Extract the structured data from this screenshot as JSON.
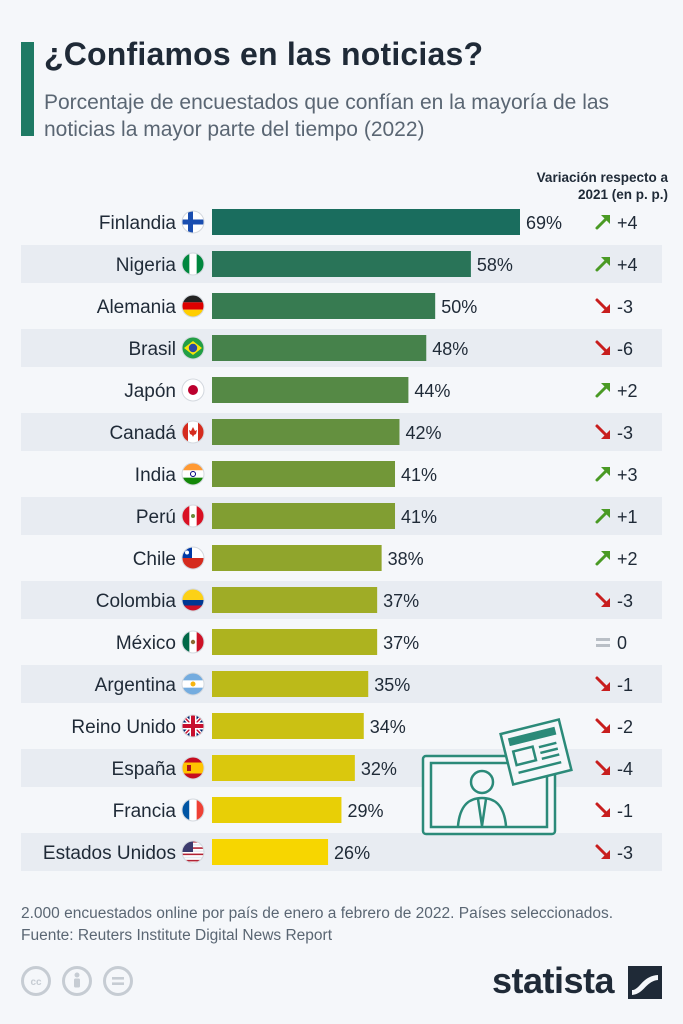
{
  "title": "¿Confiamos en las noticias?",
  "subtitle": "Porcentaje de encuestados que confían en la mayoría de las noticias la mayor parte del tiempo (2022)",
  "variation_header": "Variación respecto a 2021 (en p. p.)",
  "note": "2.000 encuestados online por país de enero a febrero de 2022. Países seleccionados.\nFuente: Reuters Institute Digital News Report",
  "brand": "statista",
  "colors": {
    "up": "#4a9a24",
    "down": "#c81e1e",
    "flat": "#b9bfc6",
    "bar_start": "#1a6d5e",
    "bar_end": "#f7d600"
  },
  "chart_data": {
    "type": "bar",
    "orientation": "horizontal",
    "unit": "%",
    "xlim": [
      0,
      100
    ],
    "categories": [
      "Finlandia",
      "Nigeria",
      "Alemania",
      "Brasil",
      "Japón",
      "Canadá",
      "India",
      "Perú",
      "Chile",
      "Colombia",
      "México",
      "Argentina",
      "Reino Unido",
      "España",
      "Francia",
      "Estados Unidos"
    ],
    "values": [
      69,
      58,
      50,
      48,
      44,
      42,
      41,
      41,
      38,
      37,
      37,
      35,
      34,
      32,
      29,
      26
    ],
    "labels": [
      "69%",
      "58%",
      "50%",
      "48%",
      "44%",
      "42%",
      "41%",
      "41%",
      "38%",
      "37%",
      "37%",
      "35%",
      "34%",
      "32%",
      "29%",
      "26%"
    ],
    "change": [
      "+4",
      "+4",
      "-3",
      "-6",
      "+2",
      "-3",
      "+3",
      "+1",
      "+2",
      "-3",
      "0",
      "-1",
      "-2",
      "-4",
      "-1",
      "-3"
    ],
    "flag_icons": [
      "flag-finland-icon",
      "flag-nigeria-icon",
      "flag-germany-icon",
      "flag-brazil-icon",
      "flag-japan-icon",
      "flag-canada-icon",
      "flag-india-icon",
      "flag-peru-icon",
      "flag-chile-icon",
      "flag-colombia-icon",
      "flag-mexico-icon",
      "flag-argentina-icon",
      "flag-uk-icon",
      "flag-spain-icon",
      "flag-france-icon",
      "flag-usa-icon"
    ]
  },
  "illustration_icon": "tv-presenter-newspaper-icon",
  "license_icons": [
    "cc-icon",
    "attribution-icon",
    "no-derivatives-icon"
  ]
}
